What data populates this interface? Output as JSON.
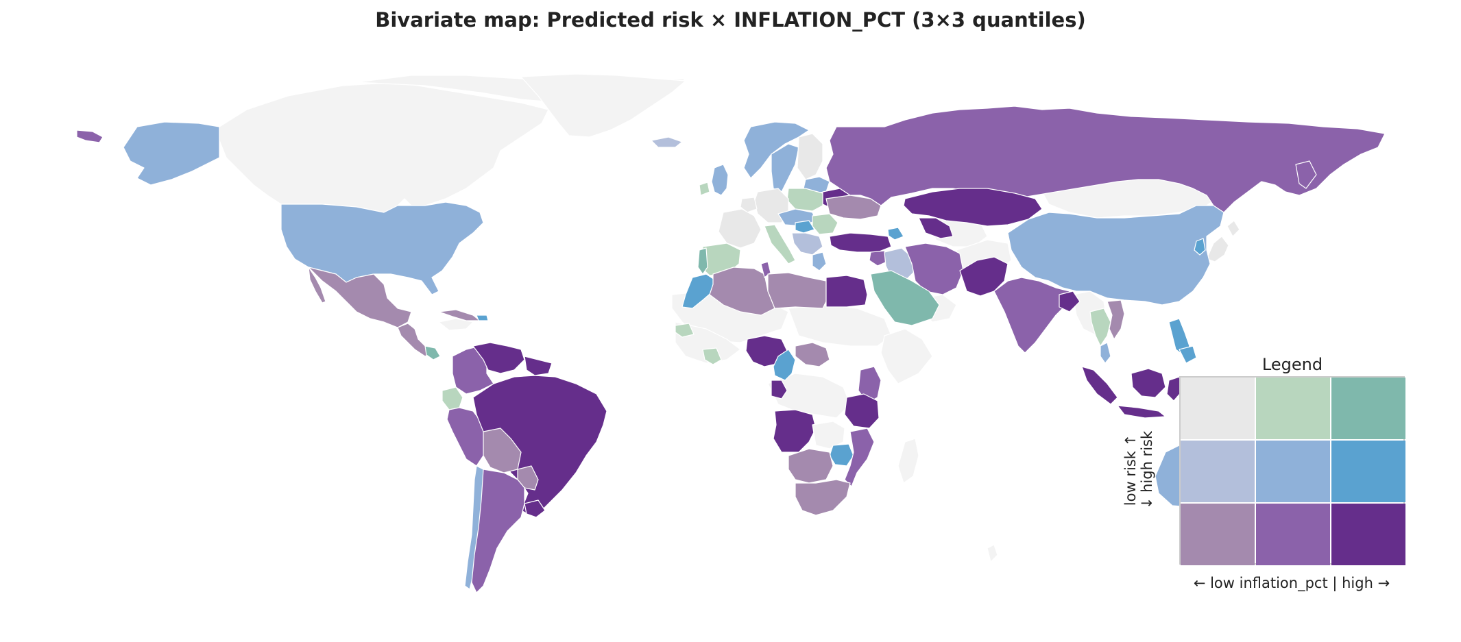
{
  "title": "Bivariate map: Predicted risk × INFLATION_PCT (3×3 quantiles)",
  "legend": {
    "title": "Legend",
    "y_axis_label_line1": "low risk ↑",
    "y_axis_label_line2": "↓ high risk",
    "x_axis_label": "← low inflation_pct  |  high →",
    "colors": [
      [
        "#e8e8e8",
        "#b8d6be",
        "#7fb8ac"
      ],
      [
        "#b3bfdb",
        "#8fb1d9",
        "#5aa2d0"
      ],
      [
        "#a48aae",
        "#8b62aa",
        "#652e8b"
      ]
    ]
  },
  "no_data_color": "#f3f3f3",
  "chart_data": {
    "type": "choropleth",
    "classification": "3x3 quantiles",
    "variables": [
      "Predicted risk",
      "INFLATION_PCT"
    ],
    "regions": [
      {
        "name": "Alaska (USA)",
        "class": "mid-risk / mid-inflation"
      },
      {
        "name": "Canada",
        "class": "no data"
      },
      {
        "name": "Greenland",
        "class": "no data"
      },
      {
        "name": "United States",
        "class": "mid-risk / mid-inflation"
      },
      {
        "name": "Mexico",
        "class": "high-risk / low-inflation"
      },
      {
        "name": "Central America",
        "class": "high-risk / low-inflation"
      },
      {
        "name": "Colombia",
        "class": "high-risk / mid-inflation"
      },
      {
        "name": "Venezuela",
        "class": "high-risk / high-inflation"
      },
      {
        "name": "Guyana / Suriname",
        "class": "high-risk / high-inflation"
      },
      {
        "name": "Ecuador",
        "class": "low-risk / mid-inflation"
      },
      {
        "name": "Peru",
        "class": "high-risk / mid-inflation"
      },
      {
        "name": "Brazil",
        "class": "high-risk / high-inflation"
      },
      {
        "name": "Bolivia",
        "class": "high-risk / low-inflation"
      },
      {
        "name": "Paraguay",
        "class": "high-risk / low-inflation"
      },
      {
        "name": "Uruguay",
        "class": "high-risk / high-inflation"
      },
      {
        "name": "Chile",
        "class": "mid-risk / mid-inflation"
      },
      {
        "name": "Argentina",
        "class": "high-risk / mid-inflation"
      },
      {
        "name": "Iceland",
        "class": "mid-risk / low-inflation"
      },
      {
        "name": "United Kingdom",
        "class": "mid-risk / mid-inflation"
      },
      {
        "name": "Ireland",
        "class": "low-risk / mid-inflation"
      },
      {
        "name": "Norway",
        "class": "mid-risk / mid-inflation"
      },
      {
        "name": "Sweden",
        "class": "mid-risk / mid-inflation"
      },
      {
        "name": "Finland",
        "class": "low-risk / low-inflation"
      },
      {
        "name": "Spain",
        "class": "low-risk / mid-inflation"
      },
      {
        "name": "Portugal",
        "class": "low-risk / high-inflation"
      },
      {
        "name": "France",
        "class": "low-risk / low-inflation"
      },
      {
        "name": "Germany",
        "class": "low-risk / low-inflation"
      },
      {
        "name": "Poland",
        "class": "low-risk / mid-inflation"
      },
      {
        "name": "Italy",
        "class": "low-risk / mid-inflation"
      },
      {
        "name": "Belarus",
        "class": "high-risk / high-inflation"
      },
      {
        "name": "Ukraine",
        "class": "high-risk / low-inflation"
      },
      {
        "name": "Turkey",
        "class": "high-risk / high-inflation"
      },
      {
        "name": "Russia",
        "class": "high-risk / mid-inflation"
      },
      {
        "name": "Kazakhstan",
        "class": "high-risk / high-inflation"
      },
      {
        "name": "Uzbekistan",
        "class": "high-risk / high-inflation"
      },
      {
        "name": "Iran",
        "class": "high-risk / mid-inflation"
      },
      {
        "name": "Iraq",
        "class": "mid-risk / low-inflation"
      },
      {
        "name": "Saudi Arabia",
        "class": "low-risk / high-inflation"
      },
      {
        "name": "Pakistan",
        "class": "high-risk / high-inflation"
      },
      {
        "name": "India",
        "class": "high-risk / mid-inflation"
      },
      {
        "name": "Bangladesh",
        "class": "high-risk / high-inflation"
      },
      {
        "name": "China",
        "class": "mid-risk / mid-inflation"
      },
      {
        "name": "Mongolia",
        "class": "no data"
      },
      {
        "name": "Japan",
        "class": "low-risk / low-inflation"
      },
      {
        "name": "South Korea",
        "class": "mid-risk / high-inflation"
      },
      {
        "name": "Thailand",
        "class": "low-risk / mid-inflation"
      },
      {
        "name": "Vietnam",
        "class": "high-risk / low-inflation"
      },
      {
        "name": "Philippines",
        "class": "mid-risk / high-inflation"
      },
      {
        "name": "Indonesia",
        "class": "high-risk / high-inflation"
      },
      {
        "name": "Australia",
        "class": "mid-risk / mid-inflation"
      },
      {
        "name": "Morocco",
        "class": "mid-risk / high-inflation"
      },
      {
        "name": "Algeria",
        "class": "high-risk / low-inflation"
      },
      {
        "name": "Libya",
        "class": "high-risk / low-inflation"
      },
      {
        "name": "Egypt",
        "class": "high-risk / high-inflation"
      },
      {
        "name": "Senegal",
        "class": "low-risk / mid-inflation"
      },
      {
        "name": "Cote d'Ivoire",
        "class": "low-risk / mid-inflation"
      },
      {
        "name": "Nigeria",
        "class": "high-risk / high-inflation"
      },
      {
        "name": "Cameroon",
        "class": "mid-risk / high-inflation"
      },
      {
        "name": "Ethiopia / South Sudan",
        "class": "high-risk / low-inflation"
      },
      {
        "name": "Kenya",
        "class": "high-risk / mid-inflation"
      },
      {
        "name": "Tanzania",
        "class": "high-risk / high-inflation"
      },
      {
        "name": "Angola",
        "class": "high-risk / high-inflation"
      },
      {
        "name": "Zimbabwe",
        "class": "mid-risk / high-inflation"
      },
      {
        "name": "Mozambique",
        "class": "high-risk / mid-inflation"
      },
      {
        "name": "Botswana / Namibia",
        "class": "high-risk / low-inflation"
      },
      {
        "name": "South Africa",
        "class": "high-risk / low-inflation"
      },
      {
        "name": "Madagascar",
        "class": "no data"
      }
    ]
  }
}
